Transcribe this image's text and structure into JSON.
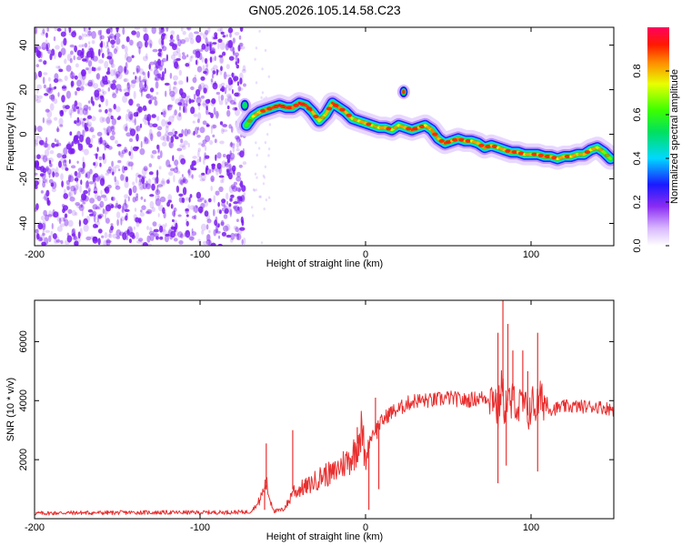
{
  "title": "GN05.2026.105.14.58.C23",
  "chart_data": [
    {
      "type": "heatmap",
      "xlabel": "Height of straight line (km)",
      "ylabel": "Frequency (Hz)",
      "xlim": [
        -200,
        150
      ],
      "ylim": [
        -50,
        48
      ],
      "x_ticks": [
        -200,
        -100,
        0,
        100
      ],
      "y_ticks": [
        -40,
        -20,
        0,
        20,
        40
      ],
      "colorbar": {
        "label": "Normalized spectral amplitude",
        "range": [
          0,
          1
        ],
        "ticks": [
          "0.0",
          "0.2",
          "0.4",
          "0.6",
          "0.8"
        ],
        "tick_values": [
          0,
          0.2,
          0.4,
          0.6,
          0.8
        ]
      },
      "noise_region_x": [
        -200,
        -73
      ],
      "noise_color": "#7a1cf0",
      "ridge": {
        "x": [
          -72,
          -68,
          -64,
          -60,
          -56,
          -52,
          -48,
          -44,
          -40,
          -36,
          -32,
          -28,
          -24,
          -20,
          -16,
          -12,
          -8,
          -4,
          0,
          4,
          8,
          12,
          16,
          20,
          24,
          28,
          32,
          36,
          40,
          44,
          48,
          52,
          56,
          60,
          64,
          68,
          72,
          76,
          80,
          84,
          88,
          92,
          96,
          100,
          104,
          108,
          112,
          116,
          120,
          124,
          128,
          132,
          136,
          140,
          144,
          148
        ],
        "y": [
          4,
          8,
          10,
          11,
          12,
          13,
          12,
          12,
          14,
          13,
          10,
          6,
          9,
          14,
          12,
          10,
          7,
          6,
          5,
          4,
          3,
          3,
          2,
          4,
          3,
          2,
          3,
          4,
          2,
          -2,
          -4,
          -3,
          -2,
          -3,
          -3,
          -4,
          -6,
          -5,
          -6,
          -7,
          -8,
          -8,
          -9,
          -9,
          -9,
          -10,
          -10,
          -11,
          -10,
          -10,
          -9,
          -9,
          -7,
          -6,
          -8,
          -11
        ]
      },
      "ridge_intensity": [
        0.6,
        0.75,
        0.8,
        0.85,
        0.9,
        0.95,
        0.9,
        0.85,
        0.95,
        0.9,
        0.8,
        0.7,
        0.8,
        0.9,
        0.85,
        0.8,
        0.7,
        0.75,
        0.8,
        0.7,
        0.75,
        0.8,
        0.7,
        0.75,
        0.8,
        0.9,
        0.8,
        0.75,
        0.85,
        0.8,
        0.9,
        0.8,
        0.85,
        0.8,
        0.75,
        0.8,
        0.85,
        0.8,
        0.75,
        0.8,
        0.85,
        0.8,
        0.75,
        0.8,
        0.8,
        0.85,
        0.8,
        0.75,
        0.8,
        0.75,
        0.7,
        0.8,
        0.75,
        0.7,
        0.65,
        0.6
      ],
      "blobs": [
        {
          "x": 23,
          "y": 19,
          "intensity": 0.9
        },
        {
          "x": -73,
          "y": 13,
          "intensity": 0.5
        }
      ]
    },
    {
      "type": "line",
      "xlabel": "Height of straight line (km)",
      "ylabel": "SNR (10 * v/v)",
      "xlim": [
        -200,
        150
      ],
      "ylim": [
        0,
        7400
      ],
      "x_ticks": [
        -200,
        -100,
        0,
        100
      ],
      "y_ticks": [
        2000,
        4000,
        6000
      ],
      "series": [
        {
          "color": "#e83030",
          "x": [
            -200,
            -180,
            -160,
            -140,
            -120,
            -100,
            -80,
            -70,
            -65,
            -62,
            -60,
            -58,
            -55,
            -50,
            -46,
            -44,
            -42,
            -40,
            -35,
            -30,
            -25,
            -20,
            -15,
            -10,
            -6,
            -4,
            -2,
            0,
            2,
            5,
            10,
            15,
            20,
            25,
            30,
            40,
            50,
            60,
            70,
            75,
            78,
            80,
            82,
            84,
            86,
            88,
            90,
            92,
            95,
            98,
            100,
            103,
            105,
            108,
            112,
            120,
            130,
            140,
            150
          ],
          "y": [
            180,
            200,
            200,
            210,
            210,
            210,
            220,
            230,
            500,
            900,
            1200,
            700,
            250,
            300,
            600,
            1000,
            900,
            1000,
            1100,
            1300,
            1500,
            1500,
            1800,
            2000,
            2300,
            2800,
            3000,
            1800,
            2600,
            3000,
            3300,
            3600,
            3700,
            3900,
            4000,
            4000,
            4100,
            4000,
            4100,
            4100,
            4200,
            3500,
            4500,
            3800,
            4000,
            3800,
            4200,
            3700,
            3900,
            3500,
            3900,
            3800,
            4000,
            4000,
            3700,
            3800,
            3800,
            3800,
            3700
          ]
        }
      ],
      "spikes": [
        {
          "x": -60,
          "y": 2550
        },
        {
          "x": -44,
          "y": 3000
        },
        {
          "x": -10,
          "y": 2100
        },
        {
          "x": -5,
          "y": 3100
        },
        {
          "x": 6,
          "y": 4100
        },
        {
          "x": 7,
          "y": 2700
        },
        {
          "x": 80,
          "y": 6300
        },
        {
          "x": 83,
          "y": 7400
        },
        {
          "x": 86,
          "y": 6600
        },
        {
          "x": 89,
          "y": 5700
        },
        {
          "x": 95,
          "y": 5700
        },
        {
          "x": 98,
          "y": 5000
        },
        {
          "x": 104,
          "y": 6300
        }
      ],
      "dips": [
        {
          "x": -61,
          "y": 300
        },
        {
          "x": 2,
          "y": 300
        },
        {
          "x": 8,
          "y": 1000
        },
        {
          "x": 80,
          "y": 1200
        },
        {
          "x": 85,
          "y": 1800
        },
        {
          "x": 104,
          "y": 1600
        }
      ]
    }
  ]
}
